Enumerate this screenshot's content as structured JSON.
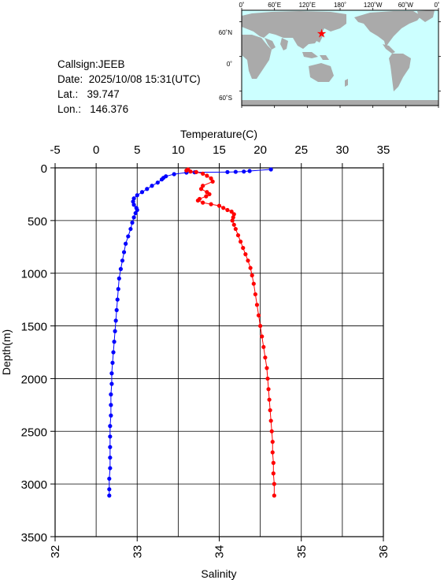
{
  "info": {
    "callsign": "Callsign:JEEB",
    "date": "Date:  2025/10/08 15:31(UTC)",
    "lat": "Lat.:   39.747",
    "lon": "Lon.:   146.376"
  },
  "map": {
    "top_labels": [
      "0˚",
      "60˚E",
      "120˚E",
      "180˚",
      "120˚W",
      "60˚W",
      "0˚"
    ],
    "side_labels": [
      "60˚N",
      "0˚",
      "60˚S"
    ],
    "ocean_color": "#ccffff",
    "land_color": "#aaaaaa",
    "marker": {
      "lon": 146.376,
      "lat": 39.747,
      "color": "#ff0000"
    }
  },
  "chart_data": {
    "type": "scatter",
    "x_top_label": "Temperature(C)",
    "x_bottom_label": "Salinity",
    "ylabel": "Depth(m)",
    "temperature_ticks": [
      "-5",
      "0",
      "5",
      "10",
      "15",
      "20",
      "25",
      "30",
      "35"
    ],
    "salinity_ticks": [
      "32",
      "33",
      "34",
      "35",
      "36"
    ],
    "depth_ticks": [
      "0",
      "500",
      "1000",
      "1500",
      "2000",
      "2500",
      "3000",
      "3500"
    ],
    "temperature_range": [
      -5,
      35
    ],
    "salinity_range": [
      32,
      36
    ],
    "depth_range": [
      0,
      3500
    ],
    "grid": true,
    "series": [
      {
        "quantity": "temperature",
        "color": "#0000ff",
        "points": [
          [
            21.3,
            15
          ],
          [
            18.7,
            30
          ],
          [
            18.0,
            35
          ],
          [
            17.0,
            38
          ],
          [
            16.0,
            40
          ],
          [
            12.0,
            42
          ],
          [
            11.0,
            45
          ],
          [
            9.5,
            60
          ],
          [
            8.5,
            80
          ],
          [
            8.2,
            95
          ],
          [
            8.0,
            110
          ],
          [
            7.5,
            140
          ],
          [
            6.8,
            170
          ],
          [
            6.2,
            200
          ],
          [
            5.6,
            230
          ],
          [
            5.0,
            260
          ],
          [
            4.6,
            290
          ],
          [
            4.5,
            320
          ],
          [
            4.6,
            350
          ],
          [
            4.9,
            380
          ],
          [
            5.0,
            400
          ],
          [
            4.8,
            430
          ],
          [
            4.6,
            470
          ],
          [
            4.4,
            520
          ],
          [
            4.2,
            580
          ],
          [
            3.9,
            650
          ],
          [
            3.6,
            720
          ],
          [
            3.4,
            800
          ],
          [
            3.2,
            880
          ],
          [
            3.0,
            960
          ],
          [
            2.8,
            1050
          ],
          [
            2.7,
            1150
          ],
          [
            2.6,
            1250
          ],
          [
            2.5,
            1350
          ],
          [
            2.4,
            1450
          ],
          [
            2.3,
            1550
          ],
          [
            2.2,
            1650
          ],
          [
            2.1,
            1750
          ],
          [
            2.0,
            1850
          ],
          [
            1.9,
            1950
          ],
          [
            1.9,
            2050
          ],
          [
            1.8,
            2150
          ],
          [
            1.8,
            2250
          ],
          [
            1.8,
            2350
          ],
          [
            1.7,
            2450
          ],
          [
            1.7,
            2550
          ],
          [
            1.7,
            2650
          ],
          [
            1.7,
            2750
          ],
          [
            1.7,
            2850
          ],
          [
            1.6,
            2950
          ],
          [
            1.6,
            3050
          ],
          [
            1.6,
            3110
          ]
        ]
      },
      {
        "quantity": "salinity",
        "color": "#ff0000",
        "points": [
          [
            33.62,
            15
          ],
          [
            33.6,
            25
          ],
          [
            33.65,
            35
          ],
          [
            33.72,
            40
          ],
          [
            33.8,
            55
          ],
          [
            33.85,
            75
          ],
          [
            33.9,
            100
          ],
          [
            33.92,
            130
          ],
          [
            33.8,
            170
          ],
          [
            33.78,
            200
          ],
          [
            33.85,
            230
          ],
          [
            33.88,
            250
          ],
          [
            33.84,
            270
          ],
          [
            33.76,
            295
          ],
          [
            33.74,
            310
          ],
          [
            33.8,
            330
          ],
          [
            33.9,
            345
          ],
          [
            34.0,
            360
          ],
          [
            34.05,
            380
          ],
          [
            34.1,
            400
          ],
          [
            34.15,
            415
          ],
          [
            34.18,
            440
          ],
          [
            34.17,
            470
          ],
          [
            34.16,
            500
          ],
          [
            34.18,
            540
          ],
          [
            34.2,
            580
          ],
          [
            34.23,
            640
          ],
          [
            34.26,
            700
          ],
          [
            34.29,
            760
          ],
          [
            34.32,
            820
          ],
          [
            34.35,
            880
          ],
          [
            34.38,
            950
          ],
          [
            34.4,
            1020
          ],
          [
            34.42,
            1100
          ],
          [
            34.44,
            1200
          ],
          [
            34.46,
            1300
          ],
          [
            34.48,
            1400
          ],
          [
            34.5,
            1500
          ],
          [
            34.52,
            1600
          ],
          [
            34.54,
            1700
          ],
          [
            34.56,
            1800
          ],
          [
            34.58,
            1900
          ],
          [
            34.59,
            2000
          ],
          [
            34.6,
            2100
          ],
          [
            34.61,
            2200
          ],
          [
            34.62,
            2300
          ],
          [
            34.63,
            2400
          ],
          [
            34.64,
            2500
          ],
          [
            34.65,
            2600
          ],
          [
            34.65,
            2700
          ],
          [
            34.66,
            2800
          ],
          [
            34.66,
            2900
          ],
          [
            34.67,
            3000
          ],
          [
            34.67,
            3110
          ]
        ]
      }
    ]
  }
}
